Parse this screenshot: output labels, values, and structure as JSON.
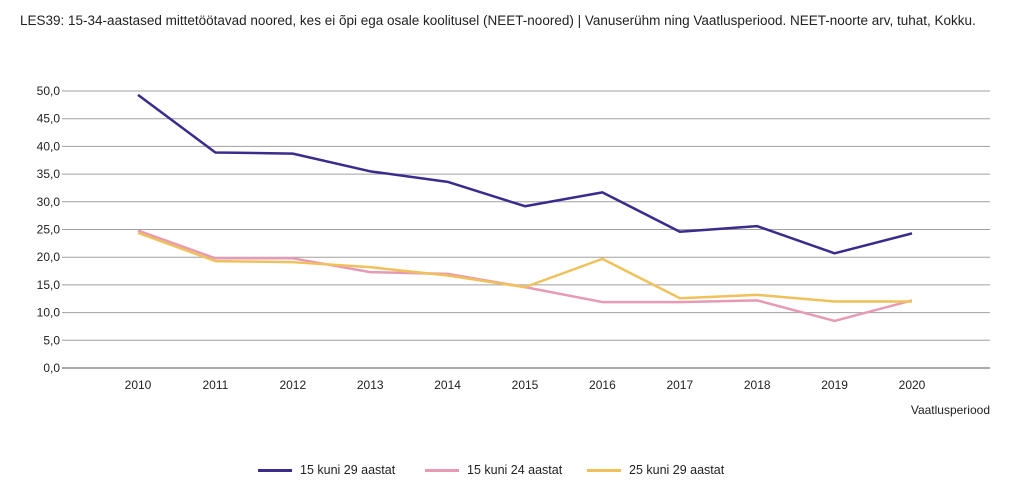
{
  "chart_data": {
    "type": "line",
    "title": "LES39: 15-34-aastased mittetöötavad noored, kes ei õpi ega osale koolitusel (NEET-noored) | Vanuserühm ning Vaatlusperiood. NEET-noorte arv, tuhat, Kokku.",
    "xlabel": "Vaatlusperiood",
    "ylabel": "",
    "x": [
      "2010",
      "2011",
      "2012",
      "2013",
      "2014",
      "2015",
      "2016",
      "2017",
      "2018",
      "2019",
      "2020"
    ],
    "y_ticks": [
      "0,0",
      "5,0",
      "10,0",
      "15,0",
      "20,0",
      "25,0",
      "30,0",
      "35,0",
      "40,0",
      "45,0",
      "50,0"
    ],
    "ylim": [
      0,
      50
    ],
    "grid": true,
    "legend_position": "bottom",
    "series": [
      {
        "name": "15 kuni 29 aastat",
        "color": "#3b2b8c",
        "values": [
          49.3,
          38.9,
          38.7,
          35.5,
          33.6,
          29.2,
          31.7,
          24.6,
          25.6,
          20.7,
          24.3
        ]
      },
      {
        "name": "15 kuni 24 aastat",
        "color": "#e79ab4",
        "values": [
          24.8,
          19.8,
          19.8,
          17.3,
          17.0,
          14.6,
          11.9,
          11.9,
          12.2,
          8.5,
          12.2
        ]
      },
      {
        "name": "25 kuni 29 aastat",
        "color": "#f0c15a",
        "values": [
          24.4,
          19.3,
          19.1,
          18.2,
          16.7,
          14.6,
          19.7,
          12.6,
          13.2,
          12.0,
          12.0
        ]
      }
    ]
  }
}
